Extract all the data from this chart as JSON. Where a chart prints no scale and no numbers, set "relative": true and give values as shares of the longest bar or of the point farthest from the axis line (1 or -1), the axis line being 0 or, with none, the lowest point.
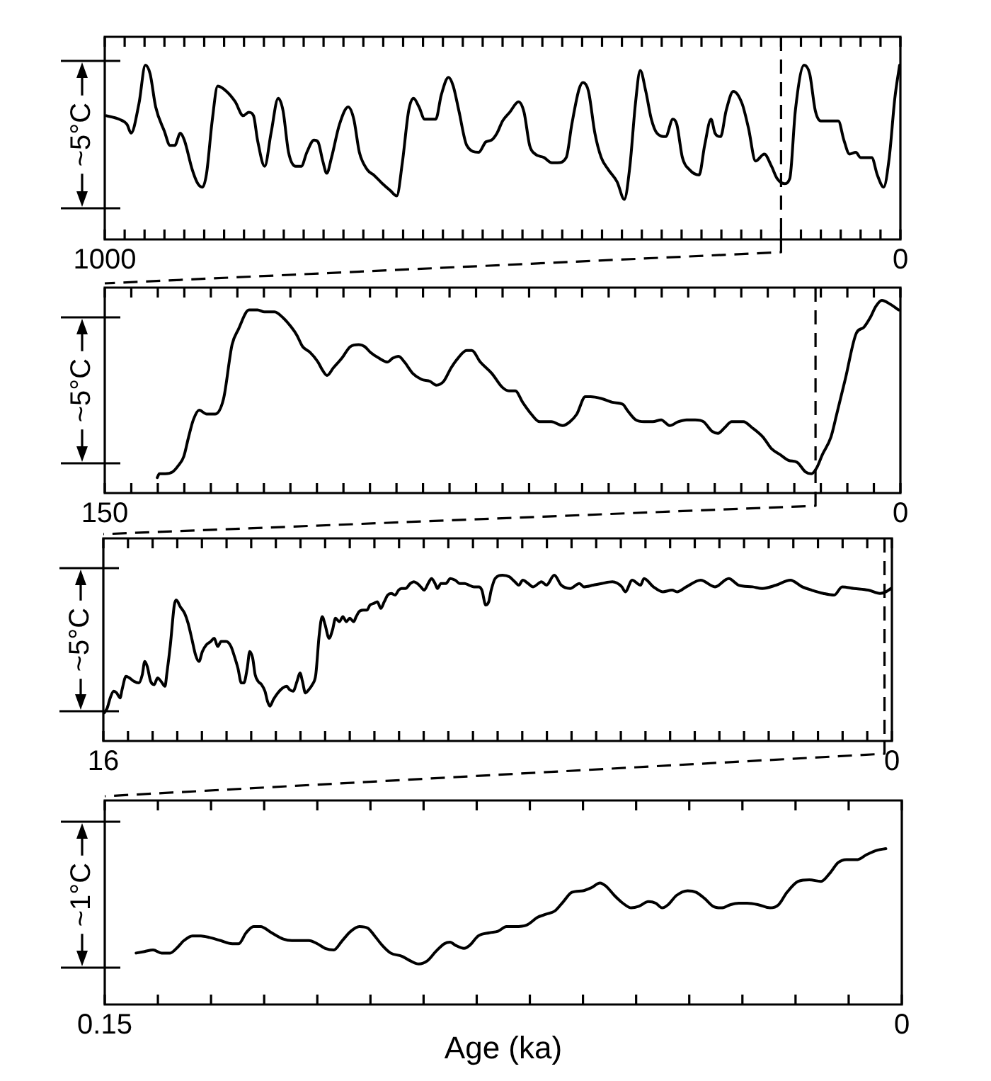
{
  "chart_data": [
    {
      "type": "line",
      "ylabel": "~5°C",
      "color": "#000000",
      "relative": true,
      "x": [
        998,
        982,
        972,
        967,
        957,
        949,
        943,
        936,
        925,
        918,
        912,
        905,
        900,
        890,
        883,
        877,
        872,
        865,
        858,
        847,
        836,
        826,
        819,
        813,
        808,
        799,
        791,
        782,
        776,
        769,
        760,
        753,
        746,
        737,
        732,
        726,
        721,
        715,
        705,
        694,
        687,
        680,
        670,
        662,
        651,
        641,
        633,
        626,
        618,
        612,
        605,
        598,
        589,
        584,
        577,
        568,
        562,
        555,
        545,
        530,
        521,
        514,
        507,
        500,
        491,
        480,
        473,
        466,
        459,
        448,
        438,
        431,
        420,
        413,
        404,
        399,
        392,
        384,
        376,
        367,
        356,
        347,
        340,
        333,
        327,
        320,
        313,
        306,
        295,
        286,
        281,
        274,
        265,
        253,
        246,
        238,
        233,
        226,
        219,
        210,
        199,
        191,
        182,
        171,
        162,
        155,
        146,
        139,
        132,
        121,
        114,
        107,
        100,
        91,
        86,
        78,
        71,
        64,
        56,
        50,
        43,
        36,
        29,
        21,
        14,
        7,
        1
      ],
      "values": [
        0.71,
        0.69,
        0.66,
        0.61,
        0.78,
        1,
        0.95,
        0.76,
        0.62,
        0.54,
        0.54,
        0.61,
        0.57,
        0.4,
        0.32,
        0.3,
        0.38,
        0.68,
        0.88,
        0.85,
        0.79,
        0.71,
        0.73,
        0.71,
        0.57,
        0.42,
        0.61,
        0.81,
        0.74,
        0.5,
        0.42,
        0.42,
        0.5,
        0.57,
        0.56,
        0.45,
        0.38,
        0.47,
        0.66,
        0.76,
        0.69,
        0.5,
        0.4,
        0.37,
        0.32,
        0.28,
        0.25,
        0.44,
        0.74,
        0.81,
        0.76,
        0.69,
        0.69,
        0.69,
        0.83,
        0.93,
        0.88,
        0.74,
        0.54,
        0.5,
        0.56,
        0.57,
        0.61,
        0.68,
        0.73,
        0.79,
        0.73,
        0.54,
        0.49,
        0.47,
        0.44,
        0.44,
        0.47,
        0.66,
        0.86,
        0.9,
        0.85,
        0.61,
        0.47,
        0.4,
        0.33,
        0.23,
        0.42,
        0.78,
        0.97,
        0.85,
        0.69,
        0.61,
        0.59,
        0.69,
        0.66,
        0.47,
        0.4,
        0.37,
        0.54,
        0.69,
        0.61,
        0.59,
        0.74,
        0.85,
        0.78,
        0.64,
        0.45,
        0.49,
        0.42,
        0.35,
        0.32,
        0.35,
        0.74,
        1,
        0.95,
        0.74,
        0.68,
        0.68,
        0.68,
        0.68,
        0.57,
        0.49,
        0.5,
        0.47,
        0.47,
        0.47,
        0.37,
        0.3,
        0.47,
        0.81,
        1
      ],
      "xlim": [
        1000,
        0
      ],
      "xticks": [
        1000,
        {
          "value": 975,
          "label": null
        },
        {
          "value": 950,
          "label": null
        },
        {
          "value": 925,
          "label": null
        },
        {
          "value": 900,
          "label": null
        },
        {
          "value": 875,
          "label": null
        },
        {
          "value": 850,
          "label": null
        },
        {
          "value": 825,
          "label": null
        },
        {
          "value": 800,
          "label": null
        },
        {
          "value": 775,
          "label": null
        },
        {
          "value": 750,
          "label": null
        },
        {
          "value": 725,
          "label": null
        },
        {
          "value": 700,
          "label": null
        },
        {
          "value": 675,
          "label": null
        },
        {
          "value": 650,
          "label": null
        },
        {
          "value": 625,
          "label": null
        },
        {
          "value": 600,
          "label": null
        },
        {
          "value": 575,
          "label": null
        },
        {
          "value": 550,
          "label": null
        },
        {
          "value": 525,
          "label": null
        },
        {
          "value": 500,
          "label": null
        },
        {
          "value": 475,
          "label": null
        },
        {
          "value": 450,
          "label": null
        },
        {
          "value": 425,
          "label": null
        },
        {
          "value": 400,
          "label": null
        },
        {
          "value": 375,
          "label": null
        },
        {
          "value": 350,
          "label": null
        },
        {
          "value": 325,
          "label": null
        },
        {
          "value": 300,
          "label": null
        },
        {
          "value": 275,
          "label": null
        },
        {
          "value": 250,
          "label": null
        },
        {
          "value": 225,
          "label": null
        },
        {
          "value": 200,
          "label": null
        },
        {
          "value": 175,
          "label": null
        },
        {
          "value": 150,
          "label": null
        },
        {
          "value": 125,
          "label": null
        },
        {
          "value": 100,
          "label": null
        },
        {
          "value": 75,
          "label": null
        },
        {
          "value": 50,
          "label": null
        },
        {
          "value": 25,
          "label": null
        },
        0
      ],
      "ref_lines": [
        {
          "axis": "x",
          "value": 150,
          "line_style": "dashed"
        }
      ]
    },
    {
      "type": "line",
      "ylabel": "~5°C",
      "color": "#000000",
      "relative": true,
      "x": [
        140.1,
        139.7,
        138.6,
        137.2,
        136.2,
        135.1,
        134.2,
        133.3,
        132.2,
        130.8,
        129.2,
        127.6,
        126.0,
        124.8,
        122.8,
        121.2,
        119.9,
        118.0,
        116.4,
        114.8,
        113.8,
        112.7,
        111.3,
        109.8,
        109.0,
        108.1,
        106.9,
        105.3,
        103.7,
        102.1,
        101.0,
        99.9,
        98.3,
        96.7,
        95.7,
        94.6,
        93.5,
        91.9,
        90.3,
        88.7,
        87.5,
        86.1,
        84.7,
        83.4,
        81.8,
        80.8,
        79.2,
        77.0,
        75.1,
        73.8,
        72.6,
        71.2,
        69.6,
        68.0,
        65.8,
        63.7,
        62.3,
        61.0,
        59.4,
        58.4,
        56.3,
        54.1,
        52.3,
        51.5,
        49.9,
        48.3,
        46.7,
        45.1,
        43.5,
        41.9,
        40.3,
        38.7,
        37.1,
        35.5,
        34.4,
        33.1,
        31.8,
        29.6,
        28.0,
        25.9,
        24.3,
        22.7,
        21.1,
        19.5,
        17.9,
        16.8,
        15.8,
        14.7,
        13.1,
        12.0,
        10.4,
        8.3,
        6.9,
        5.7,
        4.6,
        3.5,
        1.9,
        0.3
      ],
      "values": [
        0.08,
        0.1,
        0.1,
        0.11,
        0.14,
        0.19,
        0.29,
        0.38,
        0.43,
        0.41,
        0.41,
        0.49,
        0.77,
        0.85,
        0.95,
        0.95,
        0.94,
        0.94,
        0.91,
        0.86,
        0.82,
        0.76,
        0.73,
        0.68,
        0.64,
        0.61,
        0.65,
        0.7,
        0.76,
        0.77,
        0.76,
        0.73,
        0.7,
        0.68,
        0.7,
        0.71,
        0.68,
        0.62,
        0.59,
        0.58,
        0.56,
        0.58,
        0.65,
        0.7,
        0.74,
        0.74,
        0.68,
        0.62,
        0.55,
        0.53,
        0.53,
        0.47,
        0.41,
        0.37,
        0.37,
        0.35,
        0.37,
        0.41,
        0.5,
        0.5,
        0.49,
        0.47,
        0.46,
        0.43,
        0.38,
        0.37,
        0.37,
        0.38,
        0.35,
        0.37,
        0.38,
        0.38,
        0.37,
        0.32,
        0.31,
        0.34,
        0.37,
        0.37,
        0.34,
        0.29,
        0.23,
        0.2,
        0.17,
        0.16,
        0.11,
        0.1,
        0.13,
        0.2,
        0.29,
        0.41,
        0.59,
        0.83,
        0.86,
        0.91,
        0.97,
        1,
        0.98,
        0.95
      ],
      "xlim": [
        150,
        0
      ],
      "xticks": [
        150,
        {
          "value": 145,
          "label": null
        },
        {
          "value": 140,
          "label": null
        },
        {
          "value": 135,
          "label": null
        },
        {
          "value": 130,
          "label": null
        },
        {
          "value": 125,
          "label": null
        },
        {
          "value": 120,
          "label": null
        },
        {
          "value": 115,
          "label": null
        },
        {
          "value": 110,
          "label": null
        },
        {
          "value": 105,
          "label": null
        },
        {
          "value": 100,
          "label": null
        },
        {
          "value": 95,
          "label": null
        },
        {
          "value": 90,
          "label": null
        },
        {
          "value": 85,
          "label": null
        },
        {
          "value": 80,
          "label": null
        },
        {
          "value": 75,
          "label": null
        },
        {
          "value": 70,
          "label": null
        },
        {
          "value": 65,
          "label": null
        },
        {
          "value": 60,
          "label": null
        },
        {
          "value": 55,
          "label": null
        },
        {
          "value": 50,
          "label": null
        },
        {
          "value": 45,
          "label": null
        },
        {
          "value": 40,
          "label": null
        },
        {
          "value": 35,
          "label": null
        },
        {
          "value": 30,
          "label": null
        },
        {
          "value": 25,
          "label": null
        },
        {
          "value": 20,
          "label": null
        },
        {
          "value": 15,
          "label": null
        },
        {
          "value": 10,
          "label": null
        },
        {
          "value": 5,
          "label": null
        },
        0
      ],
      "ref_lines": [
        {
          "axis": "x",
          "value": 16,
          "line_style": "dashed"
        }
      ]
    },
    {
      "type": "line",
      "ylabel": "~5°C",
      "color": "#000000",
      "relative": true,
      "x": [
        15.98,
        15.92,
        15.86,
        15.79,
        15.73,
        15.66,
        15.62,
        15.54,
        15.47,
        15.38,
        15.28,
        15.21,
        15.16,
        15.11,
        15.04,
        14.97,
        14.9,
        14.83,
        14.75,
        14.71,
        14.64,
        14.56,
        14.52,
        14.44,
        14.35,
        14.28,
        14.2,
        14.13,
        14.06,
        13.99,
        13.91,
        13.82,
        13.75,
        13.68,
        13.61,
        13.51,
        13.41,
        13.34,
        13.27,
        13.2,
        13.15,
        13.08,
        13.03,
        12.97,
        12.92,
        12.86,
        12.79,
        12.72,
        12.67,
        12.62,
        12.55,
        12.46,
        12.36,
        12.28,
        12.22,
        12.15,
        12.07,
        12.01,
        11.96,
        11.9,
        11.83,
        11.76,
        11.69,
        11.62,
        11.56,
        11.5,
        11.42,
        11.35,
        11.29,
        11.21,
        11.14,
        11.07,
        11.0,
        10.92,
        10.87,
        10.81,
        10.73,
        10.65,
        10.59,
        10.51,
        10.44,
        10.37,
        10.3,
        10.23,
        10.16,
        10.08,
        10.01,
        9.95,
        9.87,
        9.77,
        9.7,
        9.63,
        9.56,
        9.49,
        9.41,
        9.34,
        9.27,
        9.22,
        9.15,
        9.05,
        8.96,
        8.86,
        8.77,
        8.67,
        8.58,
        8.48,
        8.38,
        8.32,
        8.24,
        8.18,
        8.13,
        8.05,
        7.9,
        7.76,
        7.65,
        7.57,
        7.49,
        7.38,
        7.28,
        7.11,
        7.01,
        6.85,
        6.71,
        6.53,
        6.34,
        6.25,
        6.06,
        5.89,
        5.67,
        5.48,
        5.41,
        5.27,
        5.1,
        5.03,
        4.84,
        4.65,
        4.46,
        4.36,
        4.17,
        3.88,
        3.59,
        3.31,
        3.11,
        2.83,
        2.63,
        2.35,
        2.06,
        1.82,
        1.63,
        1.39,
        1.17,
        1.01,
        0.77,
        0.48,
        0.24,
        0.12,
        0.02
      ],
      "values": [
        0.17,
        0.2,
        0.26,
        0.3,
        0.29,
        0.26,
        0.31,
        0.39,
        0.38,
        0.36,
        0.35,
        0.4,
        0.48,
        0.45,
        0.36,
        0.34,
        0.38,
        0.36,
        0.33,
        0.41,
        0.58,
        0.82,
        0.85,
        0.81,
        0.77,
        0.71,
        0.61,
        0.52,
        0.48,
        0.54,
        0.58,
        0.6,
        0.62,
        0.57,
        0.6,
        0.6,
        0.57,
        0.51,
        0.44,
        0.35,
        0.35,
        0.44,
        0.54,
        0.5,
        0.4,
        0.36,
        0.34,
        0.3,
        0.24,
        0.21,
        0.25,
        0.29,
        0.32,
        0.33,
        0.31,
        0.3,
        0.36,
        0.41,
        0.36,
        0.29,
        0.31,
        0.34,
        0.4,
        0.64,
        0.75,
        0.7,
        0.62,
        0.67,
        0.74,
        0.72,
        0.75,
        0.72,
        0.74,
        0.72,
        0.75,
        0.78,
        0.79,
        0.79,
        0.82,
        0.83,
        0.84,
        0.8,
        0.84,
        0.88,
        0.89,
        0.88,
        0.91,
        0.92,
        0.92,
        0.95,
        0.96,
        0.95,
        0.93,
        0.91,
        0.95,
        0.98,
        0.95,
        0.92,
        0.95,
        0.95,
        0.98,
        0.97,
        0.95,
        0.95,
        0.94,
        0.93,
        0.93,
        0.91,
        0.82,
        0.84,
        0.91,
        0.98,
        1.0,
        0.99,
        0.96,
        0.94,
        0.97,
        0.95,
        0.93,
        0.96,
        0.94,
        1,
        0.94,
        0.92,
        0.95,
        0.93,
        0.94,
        0.95,
        0.96,
        0.93,
        0.9,
        0.97,
        0.94,
        0.98,
        0.93,
        0.9,
        0.91,
        0.9,
        0.93,
        0.97,
        0.93,
        0.98,
        0.94,
        0.93,
        0.92,
        0.94,
        0.97,
        0.93,
        0.91,
        0.89,
        0.88,
        0.93,
        0.92,
        0.91,
        0.89,
        0.9,
        0.92
      ],
      "xlim": [
        16,
        0
      ],
      "xticks": [
        16,
        {
          "value": 15.5,
          "label": null
        },
        {
          "value": 15,
          "label": null
        },
        {
          "value": 14.5,
          "label": null
        },
        {
          "value": 14,
          "label": null
        },
        {
          "value": 13.5,
          "label": null
        },
        {
          "value": 13,
          "label": null
        },
        {
          "value": 12.5,
          "label": null
        },
        {
          "value": 12,
          "label": null
        },
        {
          "value": 11.5,
          "label": null
        },
        {
          "value": 11,
          "label": null
        },
        {
          "value": 10.5,
          "label": null
        },
        {
          "value": 10,
          "label": null
        },
        {
          "value": 9.5,
          "label": null
        },
        {
          "value": 9,
          "label": null
        },
        {
          "value": 8.5,
          "label": null
        },
        {
          "value": 8,
          "label": null
        },
        {
          "value": 7.5,
          "label": null
        },
        {
          "value": 7,
          "label": null
        },
        {
          "value": 6.5,
          "label": null
        },
        {
          "value": 6,
          "label": null
        },
        {
          "value": 5.5,
          "label": null
        },
        {
          "value": 5,
          "label": null
        },
        {
          "value": 4.5,
          "label": null
        },
        {
          "value": 4,
          "label": null
        },
        {
          "value": 3.5,
          "label": null
        },
        {
          "value": 3,
          "label": null
        },
        {
          "value": 2.5,
          "label": null
        },
        {
          "value": 2,
          "label": null
        },
        {
          "value": 1.5,
          "label": null
        },
        {
          "value": 1,
          "label": null
        },
        {
          "value": 0.5,
          "label": null
        },
        0
      ],
      "ref_lines": [
        {
          "axis": "x",
          "value": 0.15,
          "line_style": "dashed"
        }
      ]
    },
    {
      "type": "line",
      "xlabel": "Age (ka)",
      "ylabel": "~1°C",
      "color": "#000000",
      "relative": true,
      "x": [
        0.1441,
        0.1425,
        0.1409,
        0.1393,
        0.1377,
        0.1365,
        0.1351,
        0.1335,
        0.1319,
        0.1303,
        0.1282,
        0.126,
        0.1248,
        0.1234,
        0.122,
        0.1207,
        0.1186,
        0.1164,
        0.1148,
        0.1132,
        0.1116,
        0.11,
        0.1085,
        0.1069,
        0.1053,
        0.1037,
        0.1021,
        0.1005,
        0.0992,
        0.0978,
        0.0962,
        0.0941,
        0.0925,
        0.0909,
        0.0893,
        0.0877,
        0.0861,
        0.085,
        0.084,
        0.0824,
        0.0813,
        0.0797,
        0.0776,
        0.076,
        0.0744,
        0.0728,
        0.0706,
        0.0685,
        0.0669,
        0.0653,
        0.0637,
        0.0621,
        0.06,
        0.0584,
        0.0568,
        0.0557,
        0.0541,
        0.0525,
        0.0509,
        0.0495,
        0.0477,
        0.0463,
        0.0451,
        0.044,
        0.0424,
        0.0403,
        0.0387,
        0.0371,
        0.0355,
        0.0339,
        0.0323,
        0.0307,
        0.0291,
        0.027,
        0.0248,
        0.0232,
        0.0216,
        0.0195,
        0.0174,
        0.0152,
        0.0136,
        0.012,
        0.0104,
        0.0083,
        0.0067,
        0.0046,
        0.003
      ],
      "values": [
        0.33,
        0.34,
        0.35,
        0.33,
        0.33,
        0.36,
        0.41,
        0.44,
        0.44,
        0.43,
        0.41,
        0.39,
        0.39,
        0.46,
        0.5,
        0.5,
        0.46,
        0.42,
        0.41,
        0.41,
        0.41,
        0.39,
        0.36,
        0.35,
        0.41,
        0.47,
        0.5,
        0.49,
        0.44,
        0.38,
        0.33,
        0.31,
        0.28,
        0.26,
        0.28,
        0.34,
        0.39,
        0.4,
        0.38,
        0.36,
        0.38,
        0.44,
        0.46,
        0.47,
        0.5,
        0.5,
        0.51,
        0.56,
        0.58,
        0.6,
        0.66,
        0.72,
        0.73,
        0.75,
        0.78,
        0.76,
        0.7,
        0.65,
        0.62,
        0.63,
        0.66,
        0.65,
        0.62,
        0.64,
        0.7,
        0.73,
        0.72,
        0.68,
        0.63,
        0.62,
        0.64,
        0.65,
        0.65,
        0.64,
        0.62,
        0.64,
        0.72,
        0.79,
        0.8,
        0.79,
        0.84,
        0.91,
        0.93,
        0.93,
        0.96,
        0.99,
        1
      ],
      "xlim": [
        0.15,
        0
      ],
      "xticks": [
        0.15,
        {
          "value": 0.14,
          "label": null
        },
        {
          "value": 0.13,
          "label": null
        },
        {
          "value": 0.12,
          "label": null
        },
        {
          "value": 0.11,
          "label": null
        },
        {
          "value": 0.1,
          "label": null
        },
        {
          "value": 0.09,
          "label": null
        },
        {
          "value": 0.08,
          "label": null
        },
        {
          "value": 0.07,
          "label": null
        },
        {
          "value": 0.06,
          "label": null
        },
        {
          "value": 0.05,
          "label": null
        },
        {
          "value": 0.04,
          "label": null
        },
        {
          "value": 0.03,
          "label": null
        },
        {
          "value": 0.02,
          "label": null
        },
        {
          "value": 0.01,
          "label": null
        },
        0
      ]
    }
  ]
}
